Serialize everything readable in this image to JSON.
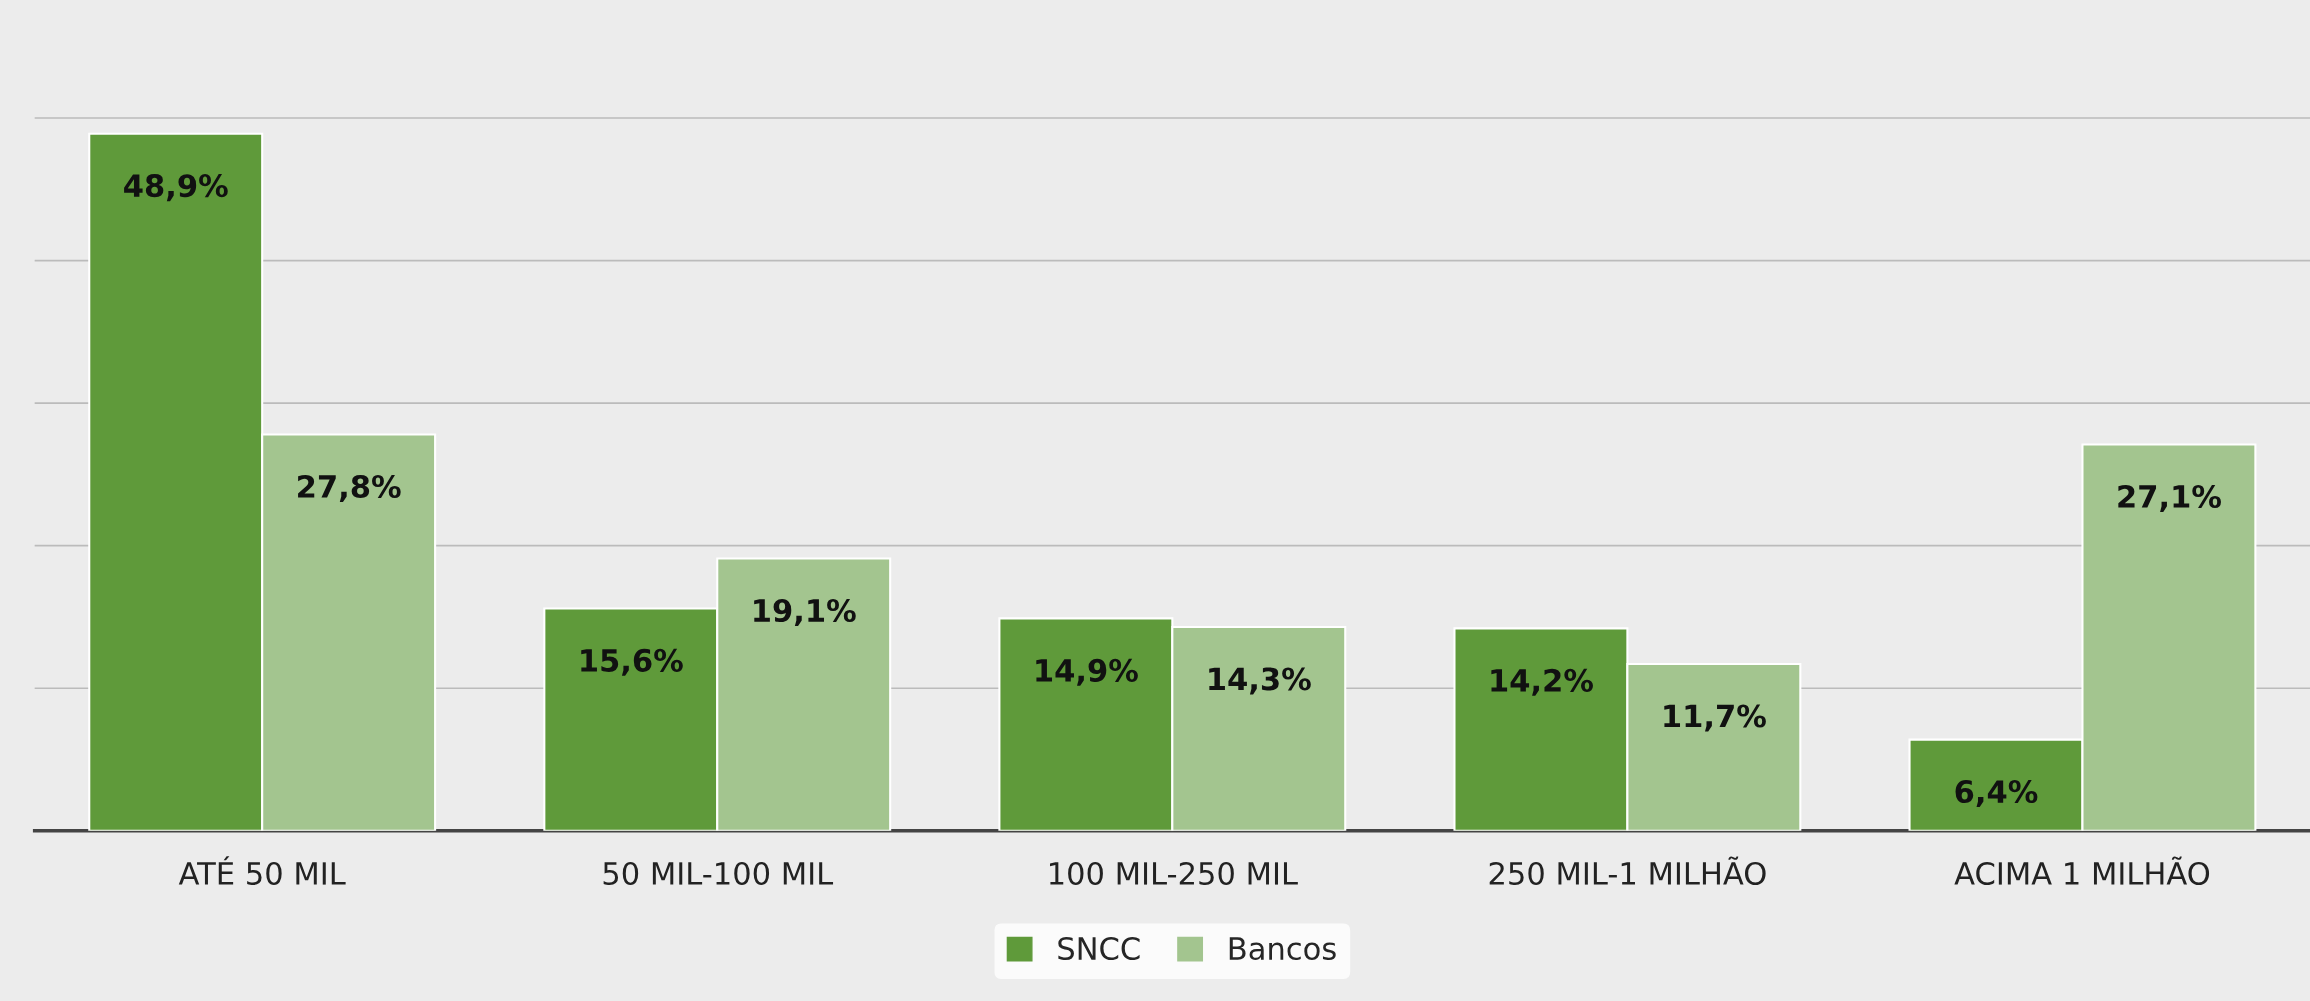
{
  "chart_data": {
    "type": "bar",
    "categories": [
      "ATÉ 50 MIL",
      "50 MIL-100 MIL",
      "100 MIL-250 MIL",
      "250 MIL-1 MILHÃO",
      "ACIMA 1 MILHÃO"
    ],
    "series": [
      {
        "name": "SNCC",
        "color": "#5f9a3a",
        "values": [
          48.9,
          15.6,
          14.9,
          14.2,
          6.4
        ],
        "value_labels": [
          "48,9%",
          "15,6%",
          "14,9%",
          "14,2%",
          "6,4%"
        ]
      },
      {
        "name": "Bancos",
        "color": "#a3c58f",
        "values": [
          27.8,
          19.1,
          14.3,
          11.7,
          27.1
        ],
        "value_labels": [
          "27,8%",
          "19,1%",
          "14,3%",
          "11,7%",
          "27,1%"
        ]
      }
    ],
    "yticks": [
      {
        "value": 0,
        "label": null
      },
      {
        "value": 10,
        "label": null
      },
      {
        "value": 20,
        "label": null
      },
      {
        "value": 30,
        "label": null
      },
      {
        "value": 40,
        "label": null
      },
      {
        "value": 50,
        "label": null
      }
    ],
    "grid": "y",
    "legend": "bottom",
    "tick_labels": "x"
  }
}
